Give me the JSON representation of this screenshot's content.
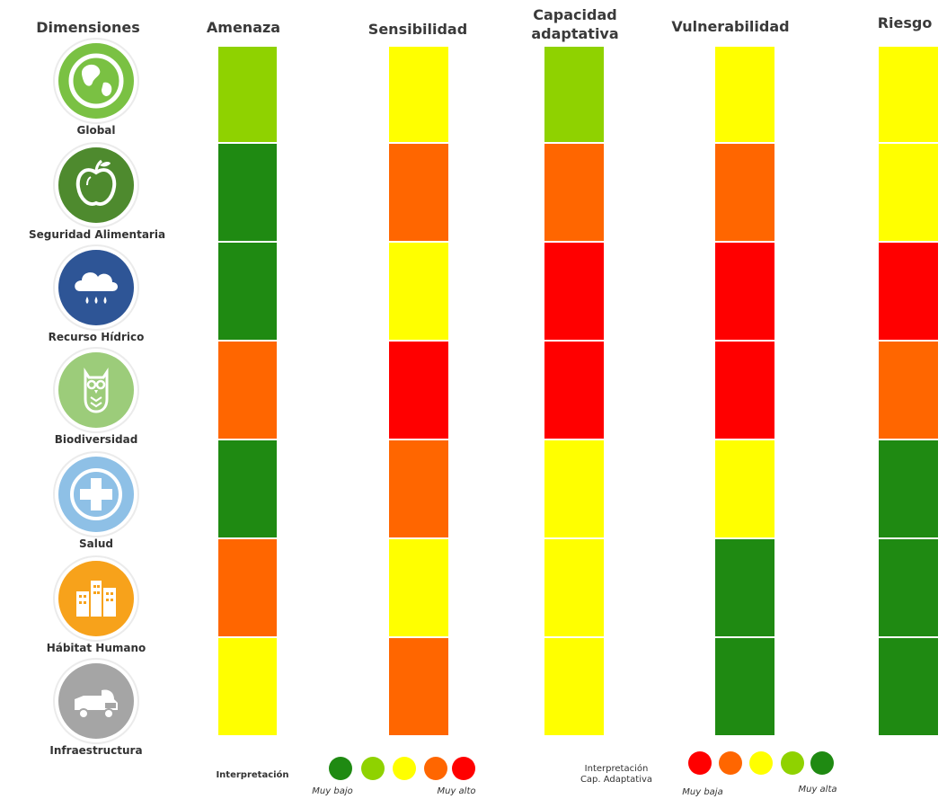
{
  "headers": {
    "dimensions": "Dimensiones",
    "threat": "Amenaza",
    "sensitivity": "Sensibilidad",
    "adaptive_capacity_line1": "Capacidad",
    "adaptive_capacity_line2": "adaptativa",
    "vulnerability": "Vulnerabilidad",
    "risk": "Riesgo"
  },
  "dimensions": [
    {
      "label": "Global",
      "icon": "globe-icon",
      "color": "#7ac143"
    },
    {
      "label": "Seguridad Alimentaria",
      "icon": "apple-icon",
      "color": "#4e8a2e"
    },
    {
      "label": "Recurso Hídrico",
      "icon": "rain-cloud-icon",
      "color": "#2e5596"
    },
    {
      "label": "Biodiversidad",
      "icon": "owl-icon",
      "color": "#9ccc7a"
    },
    {
      "label": "Salud",
      "icon": "health-cross-icon",
      "color": "#8ec0e6"
    },
    {
      "label": "Hábitat Humano",
      "icon": "buildings-icon",
      "color": "#f7a21b"
    },
    {
      "label": "Infraestructura",
      "icon": "truck-icon",
      "color": "#a5a5a5"
    }
  ],
  "palette": {
    "dark_green": "#1f8a12",
    "light_green": "#8fd200",
    "yellow": "#ffff00",
    "orange": "#ff6600",
    "red": "#ff0000"
  },
  "matrix": {
    "threat": [
      "light_green",
      "dark_green",
      "dark_green",
      "orange",
      "dark_green",
      "orange",
      "yellow"
    ],
    "sensitivity": [
      "yellow",
      "orange",
      "yellow",
      "red",
      "orange",
      "yellow",
      "orange"
    ],
    "adaptive_capacity": [
      "light_green",
      "orange",
      "red",
      "red",
      "yellow",
      "yellow",
      "yellow"
    ],
    "vulnerability": [
      "yellow",
      "orange",
      "red",
      "red",
      "yellow",
      "dark_green",
      "dark_green"
    ],
    "risk": [
      "yellow",
      "yellow",
      "red",
      "orange",
      "dark_green",
      "dark_green",
      "dark_green"
    ]
  },
  "legend": {
    "interpretation_label": "Interpretación",
    "scale": [
      "dark_green",
      "light_green",
      "yellow",
      "orange",
      "red"
    ],
    "low_label": "Muy bajo",
    "high_label": "Muy alto",
    "cap_label_line1": "Interpretación",
    "cap_label_line2": "Cap. Adaptativa",
    "cap_scale": [
      "red",
      "orange",
      "yellow",
      "light_green",
      "dark_green"
    ],
    "cap_low_label": "Muy baja",
    "cap_high_label": "Muy alta"
  }
}
